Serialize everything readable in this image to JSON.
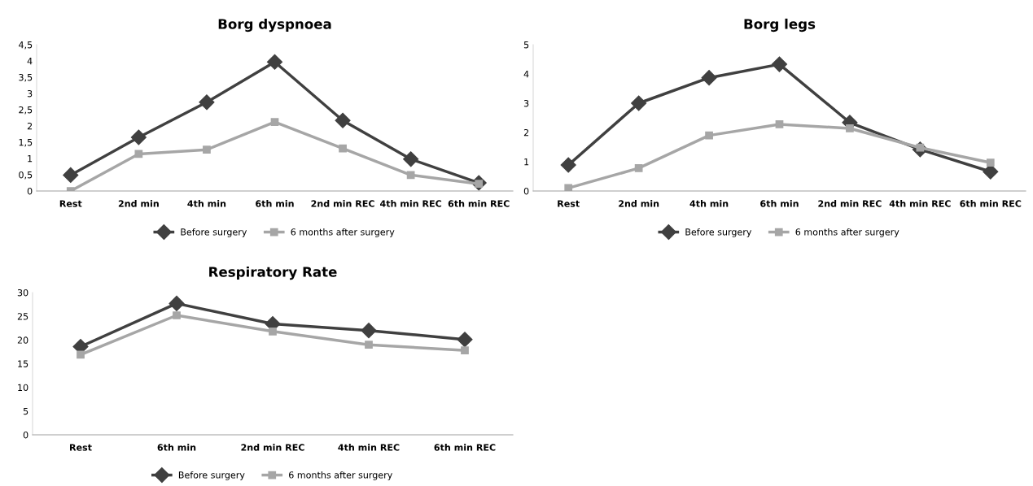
{
  "chart_data": [
    {
      "type": "line",
      "title": "Borg dyspnoea",
      "categories": [
        "Rest",
        "2nd min",
        "4th min",
        "6th min",
        "2nd min REC",
        "4th min REC",
        "6th min REC"
      ],
      "series": [
        {
          "name": "Before surgery",
          "color": "#404040",
          "marker": "diamond",
          "values": [
            0.49,
            1.65,
            2.73,
            3.97,
            2.17,
            0.98,
            0.25
          ]
        },
        {
          "name": "6 months after surgery",
          "color": "#a6a6a6",
          "marker": "square",
          "values": [
            0.0,
            1.14,
            1.27,
            2.12,
            1.31,
            0.49,
            0.22
          ]
        }
      ],
      "ylim": [
        0,
        4.5
      ],
      "yticks": [
        0,
        {
          "value": 0.5,
          "label": "0,5"
        },
        1,
        {
          "value": 1.5,
          "label": "1,5"
        },
        2,
        {
          "value": 2.5,
          "label": "2,5"
        },
        3,
        {
          "value": 3.5,
          "label": "3,5"
        },
        4,
        {
          "value": 4.5,
          "label": "4,5"
        }
      ],
      "grid": false,
      "legend": "bottom"
    },
    {
      "type": "line",
      "title": "Borg legs",
      "categories": [
        "Rest",
        "2nd min",
        "4th min",
        "6th min",
        "2nd min REC",
        "4th min REC",
        "6th min REC"
      ],
      "series": [
        {
          "name": "Before surgery",
          "color": "#404040",
          "marker": "diamond",
          "values": [
            0.89,
            3.0,
            3.87,
            4.33,
            2.34,
            1.42,
            0.66
          ]
        },
        {
          "name": "6 months after surgery",
          "color": "#a6a6a6",
          "marker": "square",
          "values": [
            0.1,
            0.78,
            1.9,
            2.28,
            2.14,
            1.48,
            0.97
          ]
        }
      ],
      "ylim": [
        0,
        5
      ],
      "yticks": [
        0,
        1,
        2,
        3,
        4,
        5
      ],
      "grid": false,
      "legend": "bottom"
    },
    {
      "type": "line",
      "title": "Respiratory Rate",
      "categories": [
        "Rest",
        "6th min",
        "2nd min REC",
        "4th min REC",
        "6th min REC"
      ],
      "series": [
        {
          "name": "Before surgery",
          "color": "#404040",
          "marker": "diamond",
          "values": [
            18.6,
            27.7,
            23.4,
            22.0,
            20.1
          ]
        },
        {
          "name": "6 months after surgery",
          "color": "#a6a6a6",
          "marker": "square",
          "values": [
            16.9,
            25.2,
            21.8,
            19.0,
            17.8
          ]
        }
      ],
      "ylim": [
        0,
        30
      ],
      "yticks": [
        0,
        5,
        10,
        15,
        20,
        25,
        30
      ],
      "grid": false,
      "legend": "bottom"
    }
  ]
}
